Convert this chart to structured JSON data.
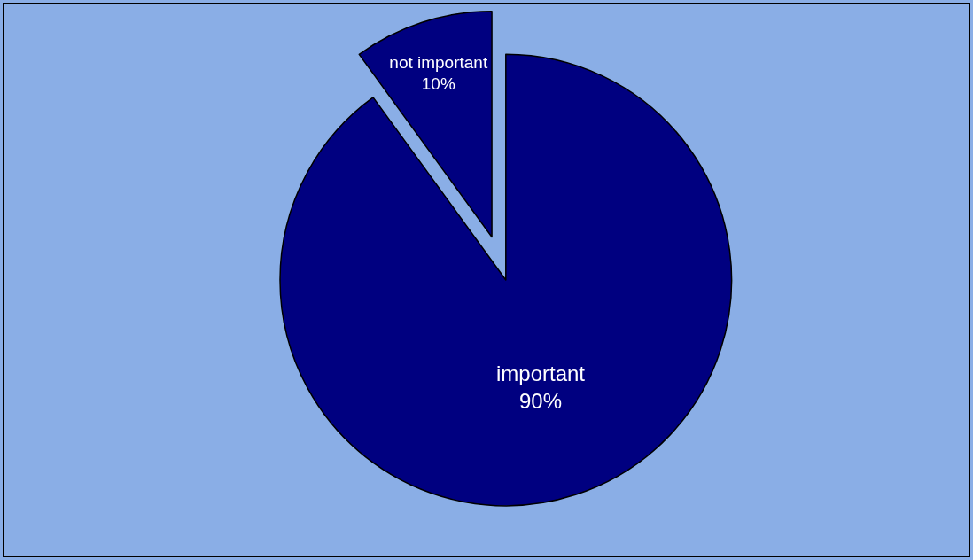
{
  "chart_data": {
    "type": "pie",
    "categories": [
      "important",
      "not important"
    ],
    "values": [
      90,
      10
    ],
    "value_labels": [
      "90%",
      "10%"
    ],
    "colors": [
      "#000080",
      "#000080"
    ],
    "legend": false
  }
}
